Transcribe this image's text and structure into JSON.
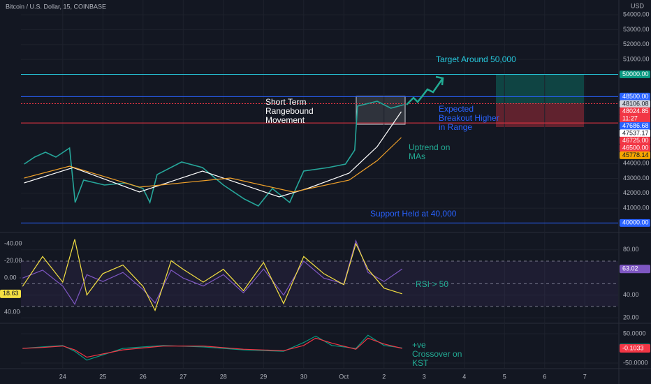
{
  "chart_data": [
    {
      "type": "line",
      "title": "Bitcoin / U.S. Dollar, 15, COINBASE",
      "y_unit": "USD",
      "xlim": [
        22.96,
        37.83
      ],
      "xticks": [
        24,
        25,
        26,
        27,
        28,
        29,
        30,
        {
          "value": 31,
          "label": "Oct"
        },
        {
          "value": 32,
          "label": "2"
        },
        {
          "value": 33,
          "label": "3"
        },
        {
          "value": 34,
          "label": "4"
        },
        {
          "value": 35,
          "label": "5"
        },
        {
          "value": 36,
          "label": "6"
        },
        {
          "value": 37,
          "label": "7"
        }
      ],
      "ylim": [
        39500,
        55000
      ],
      "yticks": [
        {
          "value": 41000,
          "label": "41000.00"
        },
        {
          "value": 42000,
          "label": "42000.00"
        },
        {
          "value": 43000,
          "label": "43000.00"
        },
        {
          "value": 44000,
          "label": "44000.00"
        },
        {
          "value": 51000,
          "label": "51000.00"
        },
        {
          "value": 52000,
          "label": "52000.00"
        },
        {
          "value": 53000,
          "label": "53000.00"
        },
        {
          "value": 54000,
          "label": "54000.00"
        }
      ],
      "grid": true,
      "series": [
        {
          "color": "#26a69a",
          "x": [
            23.04,
            23.3,
            23.57,
            23.83,
            24.17,
            24.31,
            24.52,
            25.04,
            25.57,
            26.0,
            26.17,
            26.35,
            26.96,
            27.48,
            28.0,
            28.52,
            28.87,
            29.22,
            29.65,
            30.0,
            30.61,
            31.04,
            31.27,
            31.34,
            31.83,
            32.17,
            32.49
          ],
          "values": [
            43962,
            44432,
            44761,
            44432,
            45042,
            41379,
            42882,
            42553,
            42694,
            42318,
            41379,
            43258,
            44103,
            43727,
            42553,
            41614,
            41144,
            42318,
            41379,
            43492,
            43727,
            43962,
            44901,
            47860,
            48189,
            47720,
            47955
          ]
        },
        {
          "color": "#ffffff",
          "x": [
            23.04,
            24.26,
            25.91,
            27.48,
            29.39,
            30.09,
            31.13,
            31.83,
            32.43
          ],
          "values": [
            42694,
            43727,
            42083,
            43492,
            41755,
            42318,
            43352,
            45136,
            47485
          ]
        },
        {
          "color": "#f0a12a",
          "x": [
            23.04,
            24.17,
            25.91,
            28.17,
            29.74,
            31.13,
            31.83,
            32.43
          ],
          "values": [
            43023,
            43821,
            42412,
            43023,
            42083,
            42882,
            44197,
            45747
          ]
        }
      ],
      "levels": [
        {
          "value": 50000,
          "color": "#26c6da"
        },
        {
          "value": 48500,
          "color": "#2962ff"
        },
        {
          "value": 48024.85,
          "color": "#f23645"
        },
        {
          "value": 46725,
          "color": "#f23645"
        },
        {
          "value": 40000,
          "color": "#2962ff"
        }
      ],
      "price_labels": [
        {
          "value": 50000,
          "label": "50000.00",
          "color": "#089981",
          "text_color": "#ffffff"
        },
        {
          "value": 48500,
          "label": "48500.00",
          "color": "#2962ff",
          "text_color": "#ffffff"
        },
        {
          "value": 48106.08,
          "label": "48106.08",
          "color": "#d1d4dc",
          "text_color": "#131722"
        },
        {
          "value": 48024.85,
          "label": "48024.85",
          "color": "#f23645",
          "text_color": "#ffffff"
        },
        {
          "value": 47686.68,
          "label": "47686.68",
          "color": "#2962ff",
          "text_color": "#ffffff"
        },
        {
          "value": 47537.17,
          "label": "47537.17",
          "color": "#ffffff",
          "text_color": "#131722"
        },
        {
          "value": 46725,
          "label": "46725.00",
          "color": "#f23645",
          "text_color": "#ffffff"
        },
        {
          "value": 46500,
          "label": "46500.00",
          "color": "#f23645",
          "text_color": "#ffffff"
        },
        {
          "value": 45778.14,
          "label": "45778.14",
          "color": "#f7a600",
          "text_color": "#131722"
        },
        {
          "value": 40000,
          "label": "40000.00",
          "color": "#2962ff",
          "text_color": "#ffffff"
        }
      ],
      "countdown": "11:27",
      "annotations": [
        [
          "Target Around 50,000"
        ],
        [
          "Short Term",
          "Rangebound",
          "Movement"
        ],
        [
          "Expected",
          "Breakout Higher",
          "in Range"
        ],
        [
          "Uptrend on",
          "MAs"
        ],
        [
          "Support Held at 40,000"
        ]
      ]
    },
    {
      "type": "line",
      "ylim": [
        17,
        94
      ],
      "yticks": [
        {
          "value": 80,
          "label": "80.00"
        },
        {
          "value": 40,
          "label": "40.00"
        },
        {
          "value": 20,
          "label": "20.00"
        }
      ],
      "y2lim": [
        50.6,
        -51.4
      ],
      "y2ticks": [
        {
          "value": -40,
          "label": "-40.00"
        },
        {
          "value": -20,
          "label": "-20.00"
        },
        {
          "value": 0,
          "label": "0.00"
        },
        {
          "value": 40,
          "label": "40.00"
        }
      ],
      "levels": [
        70,
        50,
        30
      ],
      "series": [
        {
          "color": "#7e57c2",
          "x": [
            23.0,
            23.5,
            24.0,
            24.3,
            24.6,
            25.0,
            25.5,
            26.0,
            26.3,
            26.7,
            27.0,
            27.5,
            28.0,
            28.5,
            29.0,
            29.5,
            30.0,
            30.5,
            31.0,
            31.3,
            31.6,
            32.0,
            32.45
          ],
          "values": [
            55,
            62,
            48,
            32,
            58,
            52,
            60,
            45,
            33,
            62,
            55,
            48,
            58,
            42,
            63,
            40,
            70,
            55,
            50,
            88,
            60,
            52,
            63.02
          ]
        },
        {
          "color": "#f5e142",
          "axis": "y2",
          "x": [
            23.0,
            23.5,
            24.0,
            24.3,
            24.6,
            25.0,
            25.5,
            26.0,
            26.3,
            26.7,
            27.0,
            27.5,
            28.0,
            28.5,
            29.0,
            29.5,
            30.0,
            30.5,
            31.0,
            31.3,
            31.6,
            32.0,
            32.45
          ],
          "values": [
            10,
            -25,
            5,
            -45,
            20,
            -5,
            -15,
            10,
            38,
            -20,
            -10,
            5,
            -10,
            15,
            -18,
            30,
            -25,
            -5,
            8,
            -40,
            -10,
            12,
            18.63
          ]
        }
      ],
      "annotations": [
        [
          "RSI > 50"
        ]
      ]
    },
    {
      "type": "line",
      "ylim": [
        -62,
        81
      ],
      "yticks": [
        {
          "value": 50,
          "label": "50.0000"
        },
        {
          "value": -50,
          "label": "-50.0000"
        }
      ],
      "series": [
        {
          "color": "#089981",
          "x": [
            23.0,
            23.5,
            24.0,
            24.3,
            24.6,
            25.5,
            26.5,
            27.5,
            28.5,
            29.5,
            30.0,
            30.3,
            30.7,
            31.3,
            31.6,
            32.0,
            32.45
          ],
          "values": [
            0,
            5,
            10,
            -10,
            -40,
            0,
            10,
            5,
            -5,
            -10,
            20,
            42,
            10,
            0,
            45,
            10,
            1.6907
          ]
        },
        {
          "color": "#f23645",
          "x": [
            23.0,
            23.5,
            24.0,
            24.3,
            24.6,
            25.5,
            26.5,
            27.5,
            28.5,
            29.5,
            30.0,
            30.3,
            30.7,
            31.3,
            31.6,
            32.0,
            32.45
          ],
          "values": [
            0,
            3,
            8,
            -5,
            -30,
            -5,
            8,
            8,
            -3,
            -8,
            10,
            35,
            18,
            -3,
            35,
            15,
            -0.1033
          ]
        }
      ],
      "annotations": [
        [
          "+ve",
          "Crossover on",
          "KST"
        ]
      ]
    }
  ]
}
